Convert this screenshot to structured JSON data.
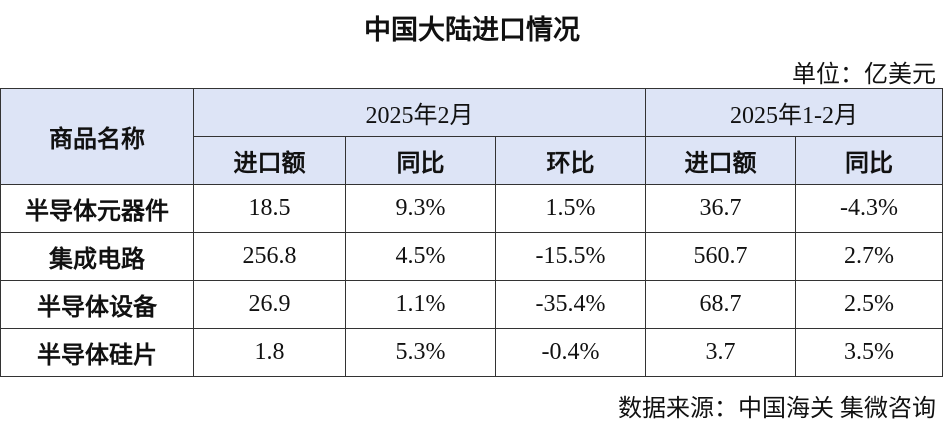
{
  "title": "中国大陆进口情况",
  "unit": "单位：亿美元",
  "table": {
    "corner": "商品名称",
    "groups": [
      "2025年2月",
      "2025年1-2月"
    ],
    "columns": [
      "进口额",
      "同比",
      "环比",
      "进口额",
      "同比"
    ],
    "rows": [
      [
        "半导体元器件",
        "18.5",
        "9.3%",
        "1.5%",
        "36.7",
        "-4.3%"
      ],
      [
        "集成电路",
        "256.8",
        "4.5%",
        "-15.5%",
        "560.7",
        "2.7%"
      ],
      [
        "半导体设备",
        "26.9",
        "1.1%",
        "-35.4%",
        "68.7",
        "2.5%"
      ],
      [
        "半导体硅片",
        "1.8",
        "5.3%",
        "-0.4%",
        "3.7",
        "3.5%"
      ]
    ]
  },
  "source": "数据来源：中国海关 集微咨询"
}
